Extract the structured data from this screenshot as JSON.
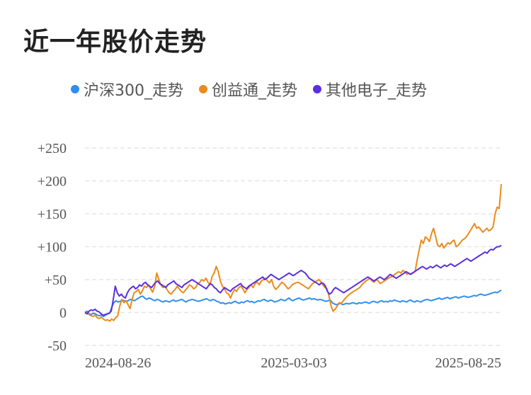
{
  "title": "近一年股价走势",
  "chart_data": {
    "type": "line",
    "title": "近一年股价走势",
    "legend_position": "top",
    "grid": true,
    "ylim": [
      -50,
      250
    ],
    "y_ticks": [
      "+250",
      "+200",
      "+150",
      "+100",
      "+50",
      "0",
      "-50"
    ],
    "x_ticks": [
      "2024-08-26",
      "2025-03-03",
      "2025-08-25"
    ],
    "series": [
      {
        "name": "沪深300_走势",
        "color": "#2f8ff0",
        "values": [
          0,
          2,
          -2,
          -3,
          -1,
          -2,
          -4,
          -5,
          -4,
          -6,
          -4,
          -2,
          -1,
          8,
          15,
          18,
          16,
          17,
          19,
          18,
          17,
          18,
          20,
          19,
          18,
          20,
          22,
          24,
          25,
          22,
          20,
          22,
          21,
          19,
          18,
          20,
          19,
          17,
          16,
          18,
          17,
          16,
          18,
          19,
          17,
          18,
          19,
          20,
          18,
          16,
          18,
          19,
          20,
          19,
          18,
          17,
          18,
          19,
          20,
          21,
          19,
          18,
          20,
          19,
          17,
          16,
          14,
          15,
          13,
          14,
          15,
          14,
          16,
          17,
          15,
          14,
          16,
          15,
          17,
          18,
          16,
          17,
          15,
          16,
          18,
          17,
          19,
          20,
          18,
          17,
          19,
          18,
          16,
          17,
          18,
          20,
          19,
          18,
          20,
          22,
          19,
          18,
          20,
          21,
          22,
          20,
          19,
          20,
          21,
          22,
          20,
          21,
          20,
          19,
          20,
          19,
          18,
          17,
          18,
          19,
          15,
          13,
          12,
          13,
          14,
          12,
          13,
          14,
          13,
          14,
          15,
          14,
          13,
          15,
          14,
          15,
          16,
          15,
          14,
          16,
          17,
          16,
          15,
          17,
          18,
          16,
          17,
          16,
          18,
          17,
          19,
          18,
          17,
          16,
          18,
          17,
          16,
          18,
          19,
          17,
          16,
          18,
          17,
          16,
          18,
          19,
          20,
          19,
          18,
          19,
          20,
          21,
          22,
          20,
          21,
          22,
          23,
          21,
          22,
          23,
          24,
          22,
          23,
          24,
          25,
          24,
          23,
          24,
          25,
          26,
          25,
          27,
          28,
          27,
          26,
          27,
          28,
          29,
          30,
          31,
          30,
          32,
          34
        ]
      },
      {
        "name": "创益通_走势",
        "color": "#ec8a1b",
        "values": [
          0,
          -1,
          -3,
          -5,
          -6,
          -4,
          -8,
          -9,
          -7,
          -10,
          -12,
          -11,
          -13,
          -10,
          -12,
          -8,
          -5,
          10,
          20,
          15,
          18,
          12,
          6,
          20,
          30,
          32,
          35,
          28,
          33,
          40,
          38,
          42,
          36,
          31,
          40,
          60,
          50,
          42,
          38,
          40,
          35,
          30,
          28,
          32,
          35,
          40,
          36,
          32,
          30,
          34,
          38,
          42,
          40,
          36,
          38,
          44,
          46,
          50,
          48,
          52,
          46,
          42,
          55,
          60,
          70,
          62,
          48,
          40,
          36,
          30,
          28,
          22,
          30,
          35,
          32,
          38,
          40,
          36,
          30,
          35,
          38,
          42,
          38,
          44,
          46,
          42,
          48,
          50,
          52,
          48,
          45,
          50,
          40,
          35,
          38,
          42,
          46,
          44,
          40,
          36,
          38,
          42,
          44,
          45,
          46,
          44,
          42,
          40,
          38,
          36,
          40,
          44,
          46,
          48,
          50,
          47,
          42,
          38,
          36,
          25,
          10,
          2,
          5,
          10,
          15,
          14,
          18,
          22,
          25,
          28,
          30,
          32,
          34,
          36,
          38,
          42,
          45,
          48,
          50,
          52,
          48,
          46,
          50,
          48,
          44,
          46,
          48,
          50,
          52,
          54,
          55,
          58,
          60,
          62,
          60,
          64,
          62,
          58,
          60,
          58,
          60,
          62,
          80,
          95,
          110,
          105,
          115,
          112,
          108,
          120,
          128,
          115,
          102,
          100,
          105,
          98,
          102,
          106,
          104,
          108,
          110,
          100,
          102,
          106,
          110,
          112,
          115,
          120,
          125,
          130,
          135,
          128,
          130,
          126,
          122,
          125,
          128,
          124,
          126,
          130,
          150,
          160,
          158,
          195
        ]
      },
      {
        "name": "其他电子_走势",
        "color": "#5a2fe0",
        "values": [
          0,
          -2,
          2,
          4,
          3,
          5,
          2,
          1,
          -2,
          -4,
          -3,
          -2,
          -1,
          2,
          20,
          40,
          30,
          25,
          28,
          24,
          22,
          30,
          35,
          38,
          40,
          36,
          38,
          42,
          40,
          44,
          46,
          42,
          40,
          38,
          42,
          46,
          48,
          44,
          42,
          40,
          38,
          42,
          44,
          46,
          48,
          44,
          42,
          40,
          38,
          42,
          44,
          46,
          48,
          50,
          48,
          46,
          44,
          42,
          40,
          38,
          36,
          40,
          44,
          42,
          38,
          36,
          32,
          30,
          34,
          38,
          36,
          34,
          32,
          36,
          38,
          40,
          42,
          44,
          40,
          38,
          36,
          40,
          42,
          44,
          46,
          48,
          50,
          52,
          54,
          50,
          52,
          55,
          58,
          56,
          54,
          52,
          50,
          52,
          54,
          56,
          58,
          60,
          58,
          56,
          58,
          60,
          62,
          64,
          62,
          60,
          56,
          52,
          50,
          48,
          46,
          44,
          42,
          45,
          44,
          40,
          32,
          28,
          30,
          35,
          38,
          36,
          34,
          32,
          30,
          32,
          34,
          36,
          38,
          40,
          42,
          44,
          46,
          48,
          50,
          52,
          54,
          52,
          50,
          48,
          50,
          52,
          54,
          52,
          50,
          52,
          55,
          58,
          56,
          54,
          52,
          54,
          56,
          58,
          60,
          62,
          60,
          58,
          60,
          62,
          64,
          66,
          68,
          70,
          68,
          66,
          68,
          70,
          68,
          70,
          72,
          70,
          68,
          70,
          72,
          70,
          72,
          74,
          72,
          70,
          72,
          74,
          76,
          78,
          80,
          82,
          80,
          78,
          80,
          82,
          84,
          86,
          88,
          90,
          92,
          90,
          94,
          96,
          95,
          98,
          100,
          100,
          102
        ]
      }
    ]
  }
}
